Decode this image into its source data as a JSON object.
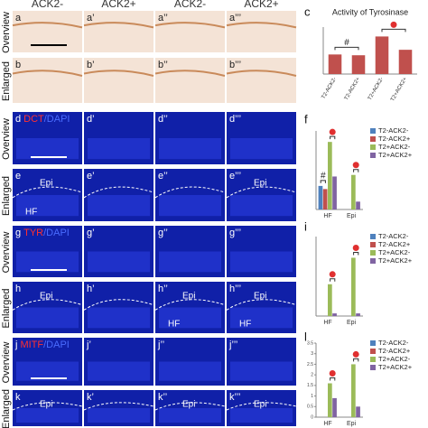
{
  "column_headers": [
    "ACK2-",
    "ACK2+",
    "ACK2-",
    "ACK2+"
  ],
  "rows": [
    {
      "side_label": "Overview",
      "panels": [
        {
          "label": "a"
        },
        {
          "label": "a’"
        },
        {
          "label": "a’’"
        },
        {
          "label": "a’’’"
        }
      ]
    },
    {
      "side_label": "Enlarged",
      "panels": [
        {
          "label": "b"
        },
        {
          "label": "b’"
        },
        {
          "label": "b’’"
        },
        {
          "label": "b’’’"
        }
      ]
    },
    {
      "side_label": "Overview",
      "panels": [
        {
          "label": "d",
          "marker": "DCT",
          "counterstain": "/DAPI"
        },
        {
          "label": "d’"
        },
        {
          "label": "d’’"
        },
        {
          "label": "d’’’"
        }
      ]
    },
    {
      "side_label": "Enlarged",
      "panels": [
        {
          "label": "e",
          "notes": [
            "Epi",
            "HF"
          ]
        },
        {
          "label": "e’"
        },
        {
          "label": "e’’"
        },
        {
          "label": "e’’’",
          "notes": [
            "Epi"
          ]
        }
      ]
    },
    {
      "side_label": "Overview",
      "panels": [
        {
          "label": "g",
          "marker": "TYR",
          "counterstain": "/DAPI"
        },
        {
          "label": "g’"
        },
        {
          "label": "g’’"
        },
        {
          "label": "g’’’"
        }
      ]
    },
    {
      "side_label": "Enlarged",
      "panels": [
        {
          "label": "h",
          "notes": [
            "Epi"
          ]
        },
        {
          "label": "h’"
        },
        {
          "label": "h’’",
          "notes": [
            "Epi",
            "HF"
          ]
        },
        {
          "label": "h’’’",
          "notes": [
            "Epi",
            "HF"
          ]
        }
      ]
    },
    {
      "side_label": "Overview",
      "panels": [
        {
          "label": "j",
          "marker": "MITF",
          "counterstain": "/DAPI"
        },
        {
          "label": "j’"
        },
        {
          "label": "j’’"
        },
        {
          "label": "j’’’"
        }
      ]
    },
    {
      "side_label": "Enlarged",
      "panels": [
        {
          "label": "k",
          "notes": [
            "Epi"
          ]
        },
        {
          "label": "k’"
        },
        {
          "label": "k’’",
          "notes": [
            "Epi"
          ]
        },
        {
          "label": "k’’’",
          "notes": [
            "Epi"
          ]
        }
      ]
    }
  ],
  "chart_data": [
    {
      "type": "bar",
      "label": "c",
      "title": "Activity of Tyrosinase",
      "categories": [
        "T2-ACK2-",
        "T2-ACK2+",
        "T2+ACK2-",
        "T2+ACK2+"
      ],
      "values": [
        0.25,
        0.24,
        0.48,
        0.31
      ],
      "color": "#c0504d",
      "ylim": [
        0,
        0.6
      ],
      "annotations": [
        "#"
      ]
    },
    {
      "type": "grouped-bar",
      "label": "f",
      "categories": [
        "HF",
        "Epi"
      ],
      "ylim": [
        0,
        5
      ],
      "annotations": [
        "#"
      ],
      "series": [
        {
          "name": "T2-ACK2-",
          "color": "#4f81bd",
          "values": [
            1.5,
            0
          ]
        },
        {
          "name": "T2-ACK2+",
          "color": "#c0504d",
          "values": [
            1.3,
            0
          ]
        },
        {
          "name": "T2+ACK2-",
          "color": "#9bbb59",
          "values": [
            4.3,
            2.2
          ]
        },
        {
          "name": "T2+ACK2+",
          "color": "#8064a2",
          "values": [
            2.1,
            0.5
          ]
        }
      ]
    },
    {
      "type": "grouped-bar",
      "label": "i",
      "categories": [
        "HF",
        "Epi"
      ],
      "ylim": [
        0,
        3
      ],
      "series": [
        {
          "name": "T2-ACK2-",
          "color": "#4f81bd",
          "values": [
            0,
            0
          ]
        },
        {
          "name": "T2-ACK2+",
          "color": "#c0504d",
          "values": [
            0,
            0
          ]
        },
        {
          "name": "T2+ACK2-",
          "color": "#9bbb59",
          "values": [
            1.2,
            2.2
          ]
        },
        {
          "name": "T2+ACK2+",
          "color": "#8064a2",
          "values": [
            0.1,
            0.1
          ]
        }
      ]
    },
    {
      "type": "grouped-bar",
      "label": "l",
      "categories": [
        "HF",
        "Epi"
      ],
      "ylim": [
        0,
        3.5
      ],
      "yticks": [
        0,
        0.5,
        1,
        1.5,
        2,
        2.5,
        3,
        3.5
      ],
      "series": [
        {
          "name": "T2-ACK2-",
          "color": "#4f81bd",
          "values": [
            0,
            0
          ]
        },
        {
          "name": "T2-ACK2+",
          "color": "#c0504d",
          "values": [
            0,
            0
          ]
        },
        {
          "name": "T2+ACK2-",
          "color": "#9bbb59",
          "values": [
            1.6,
            2.5
          ]
        },
        {
          "name": "T2+ACK2+",
          "color": "#8064a2",
          "values": [
            0.9,
            0.5
          ]
        }
      ]
    }
  ]
}
